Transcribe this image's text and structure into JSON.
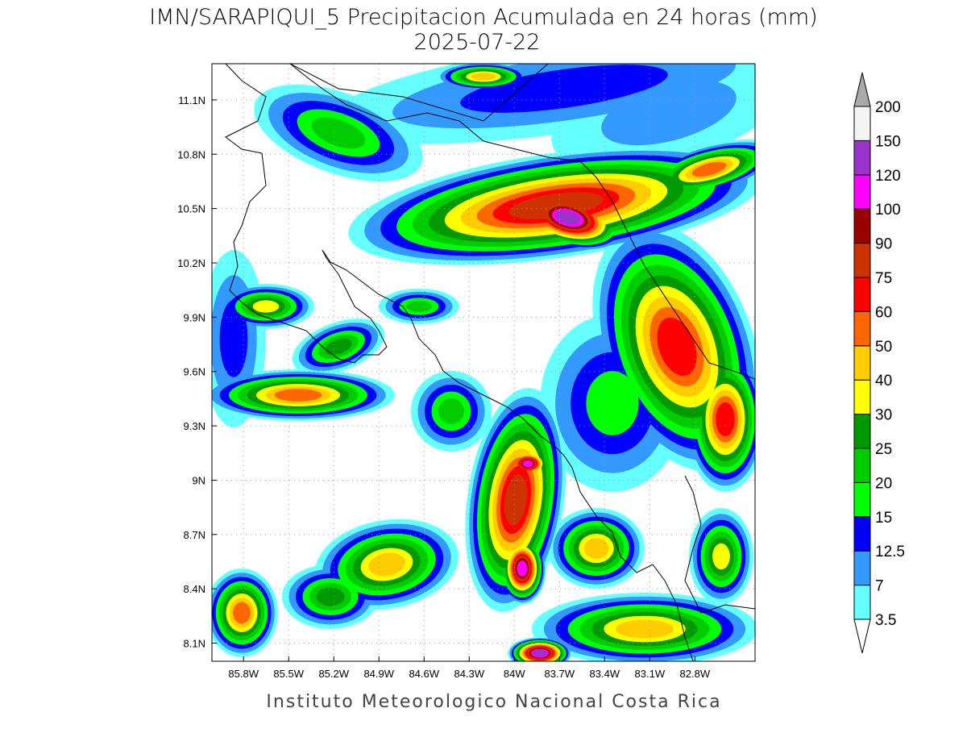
{
  "title": "IMN/SARAPIQUI_5 Precipitacion Acumulada en 24 horas (mm)",
  "subtitle": "2025-07-22",
  "footer": "Instituto Meteorologico Nacional Costa Rica",
  "map": {
    "xlim": [
      -86.01,
      -82.4
    ],
    "ylim": [
      8.0,
      11.3
    ],
    "xticks": [
      {
        "value": -85.8,
        "label": "85.8W"
      },
      {
        "value": -85.5,
        "label": "85.5W"
      },
      {
        "value": -85.2,
        "label": "85.2W"
      },
      {
        "value": -84.9,
        "label": "84.9W"
      },
      {
        "value": -84.6,
        "label": "84.6W"
      },
      {
        "value": -84.3,
        "label": "84.3W"
      },
      {
        "value": -84.0,
        "label": "84W"
      },
      {
        "value": -83.7,
        "label": "83.7W"
      },
      {
        "value": -83.4,
        "label": "83.4W"
      },
      {
        "value": -83.1,
        "label": "83.1W"
      },
      {
        "value": -82.8,
        "label": "82.8W"
      }
    ],
    "yticks": [
      {
        "value": 8.1,
        "label": "8.1N"
      },
      {
        "value": 8.4,
        "label": "8.4N"
      },
      {
        "value": 8.7,
        "label": "8.7N"
      },
      {
        "value": 9.0,
        "label": "9N"
      },
      {
        "value": 9.3,
        "label": "9.3N"
      },
      {
        "value": 9.6,
        "label": "9.6N"
      },
      {
        "value": 9.9,
        "label": "9.9N"
      },
      {
        "value": 10.2,
        "label": "10.2N"
      },
      {
        "value": 10.5,
        "label": "10.5N"
      },
      {
        "value": 10.8,
        "label": "10.8N"
      },
      {
        "value": 11.1,
        "label": "11.1N"
      }
    ],
    "grid": true
  },
  "colorbar": {
    "levels": [
      3.5,
      7,
      12.5,
      15,
      20,
      25,
      30,
      40,
      50,
      60,
      75,
      90,
      100,
      120,
      150,
      200
    ],
    "colors": [
      "#66ffff",
      "#3399ff",
      "#0000ff",
      "#00ff00",
      "#00cc00",
      "#009900",
      "#ffff00",
      "#ffcc00",
      "#ff6600",
      "#ff0000",
      "#cc3300",
      "#990000",
      "#ff00ff",
      "#9933cc",
      "#f5f5f5"
    ],
    "under_color": "#ffffff",
    "over_color": "#aaaaaa"
  }
}
